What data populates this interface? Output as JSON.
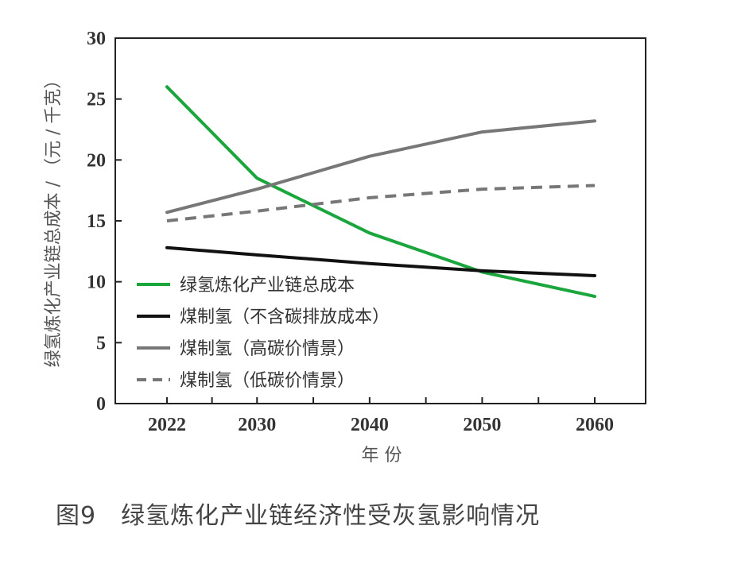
{
  "caption": "图9　绿氢炼化产业链经济性受灰氢影响情况",
  "chart_data": {
    "type": "line",
    "xlabel": "年 份",
    "ylabel": "绿氢炼化产业链总成本 / （元 / 千克）",
    "x": [
      2022,
      2030,
      2040,
      2050,
      2060
    ],
    "x_ticks": [
      "2022",
      "2030",
      "2040",
      "2050",
      "2060"
    ],
    "ylim": [
      0,
      30
    ],
    "y_ticks": [
      "0",
      "5",
      "10",
      "15",
      "20",
      "25",
      "30"
    ],
    "grid": false,
    "legend_position": "lower-left",
    "series": [
      {
        "name": "绿氢炼化产业链总成本",
        "color": "#1aa63c",
        "dash": false,
        "values": [
          26.0,
          18.5,
          14.0,
          10.8,
          8.8
        ]
      },
      {
        "name": "煤制氢（不含碳排放成本）",
        "color": "#111111",
        "dash": false,
        "values": [
          12.8,
          12.2,
          11.5,
          10.9,
          10.5
        ]
      },
      {
        "name": "煤制氢（高碳价情景）",
        "color": "#777777",
        "dash": false,
        "values": [
          15.7,
          17.6,
          20.3,
          22.3,
          23.2
        ]
      },
      {
        "name": "煤制氢（低碳价情景）",
        "color": "#777777",
        "dash": true,
        "values": [
          15.0,
          15.8,
          16.9,
          17.6,
          17.9
        ]
      }
    ]
  }
}
